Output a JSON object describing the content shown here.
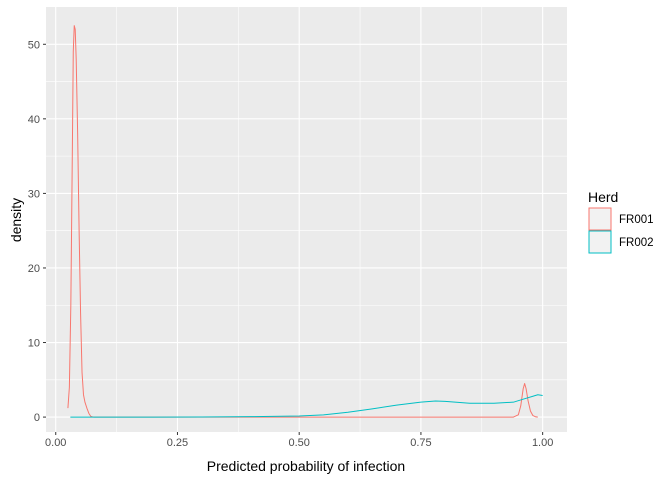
{
  "chart_data": {
    "type": "line",
    "subtype": "density",
    "xlabel": "Predicted probability of infection",
    "ylabel": "density",
    "xlim": [
      -0.02,
      1.05
    ],
    "ylim": [
      -2,
      55
    ],
    "x_ticks": [
      0.0,
      0.25,
      0.5,
      0.75,
      1.0
    ],
    "x_tick_labels": [
      "0.00",
      "0.25",
      "0.50",
      "0.75",
      "1.00"
    ],
    "y_ticks": [
      0,
      10,
      20,
      30,
      40,
      50
    ],
    "y_tick_labels": [
      "0",
      "10",
      "20",
      "30",
      "40",
      "50"
    ],
    "grid": true,
    "legend": {
      "title": "Herd",
      "position": "right",
      "entries": [
        "FR001",
        "FR002"
      ]
    },
    "series": [
      {
        "name": "FR001",
        "color": "#F8766D",
        "points": [
          [
            0.025,
            1.2
          ],
          [
            0.028,
            4
          ],
          [
            0.031,
            15
          ],
          [
            0.034,
            35
          ],
          [
            0.036,
            49
          ],
          [
            0.038,
            52.5
          ],
          [
            0.04,
            52
          ],
          [
            0.042,
            48
          ],
          [
            0.045,
            38
          ],
          [
            0.048,
            25
          ],
          [
            0.051,
            14
          ],
          [
            0.054,
            6
          ],
          [
            0.057,
            3
          ],
          [
            0.06,
            2
          ],
          [
            0.064,
            1.2
          ],
          [
            0.068,
            0.5
          ],
          [
            0.072,
            0.1
          ],
          [
            0.076,
            0.02
          ],
          [
            0.08,
            0
          ],
          [
            0.94,
            0
          ],
          [
            0.95,
            0.3
          ],
          [
            0.955,
            1.5
          ],
          [
            0.96,
            3.8
          ],
          [
            0.963,
            4.5
          ],
          [
            0.966,
            3.8
          ],
          [
            0.97,
            2.2
          ],
          [
            0.975,
            0.8
          ],
          [
            0.98,
            0.2
          ],
          [
            0.985,
            0.05
          ],
          [
            0.99,
            0
          ]
        ]
      },
      {
        "name": "FR002",
        "color": "#00BFC4",
        "points": [
          [
            0.03,
            0
          ],
          [
            0.1,
            0
          ],
          [
            0.2,
            0
          ],
          [
            0.3,
            0.02
          ],
          [
            0.4,
            0.06
          ],
          [
            0.5,
            0.15
          ],
          [
            0.55,
            0.3
          ],
          [
            0.6,
            0.65
          ],
          [
            0.65,
            1.1
          ],
          [
            0.7,
            1.6
          ],
          [
            0.75,
            2.0
          ],
          [
            0.78,
            2.15
          ],
          [
            0.8,
            2.1
          ],
          [
            0.85,
            1.85
          ],
          [
            0.9,
            1.85
          ],
          [
            0.94,
            2.0
          ],
          [
            0.96,
            2.4
          ],
          [
            0.98,
            2.8
          ],
          [
            0.99,
            3.0
          ],
          [
            1.0,
            2.9
          ]
        ]
      }
    ]
  }
}
